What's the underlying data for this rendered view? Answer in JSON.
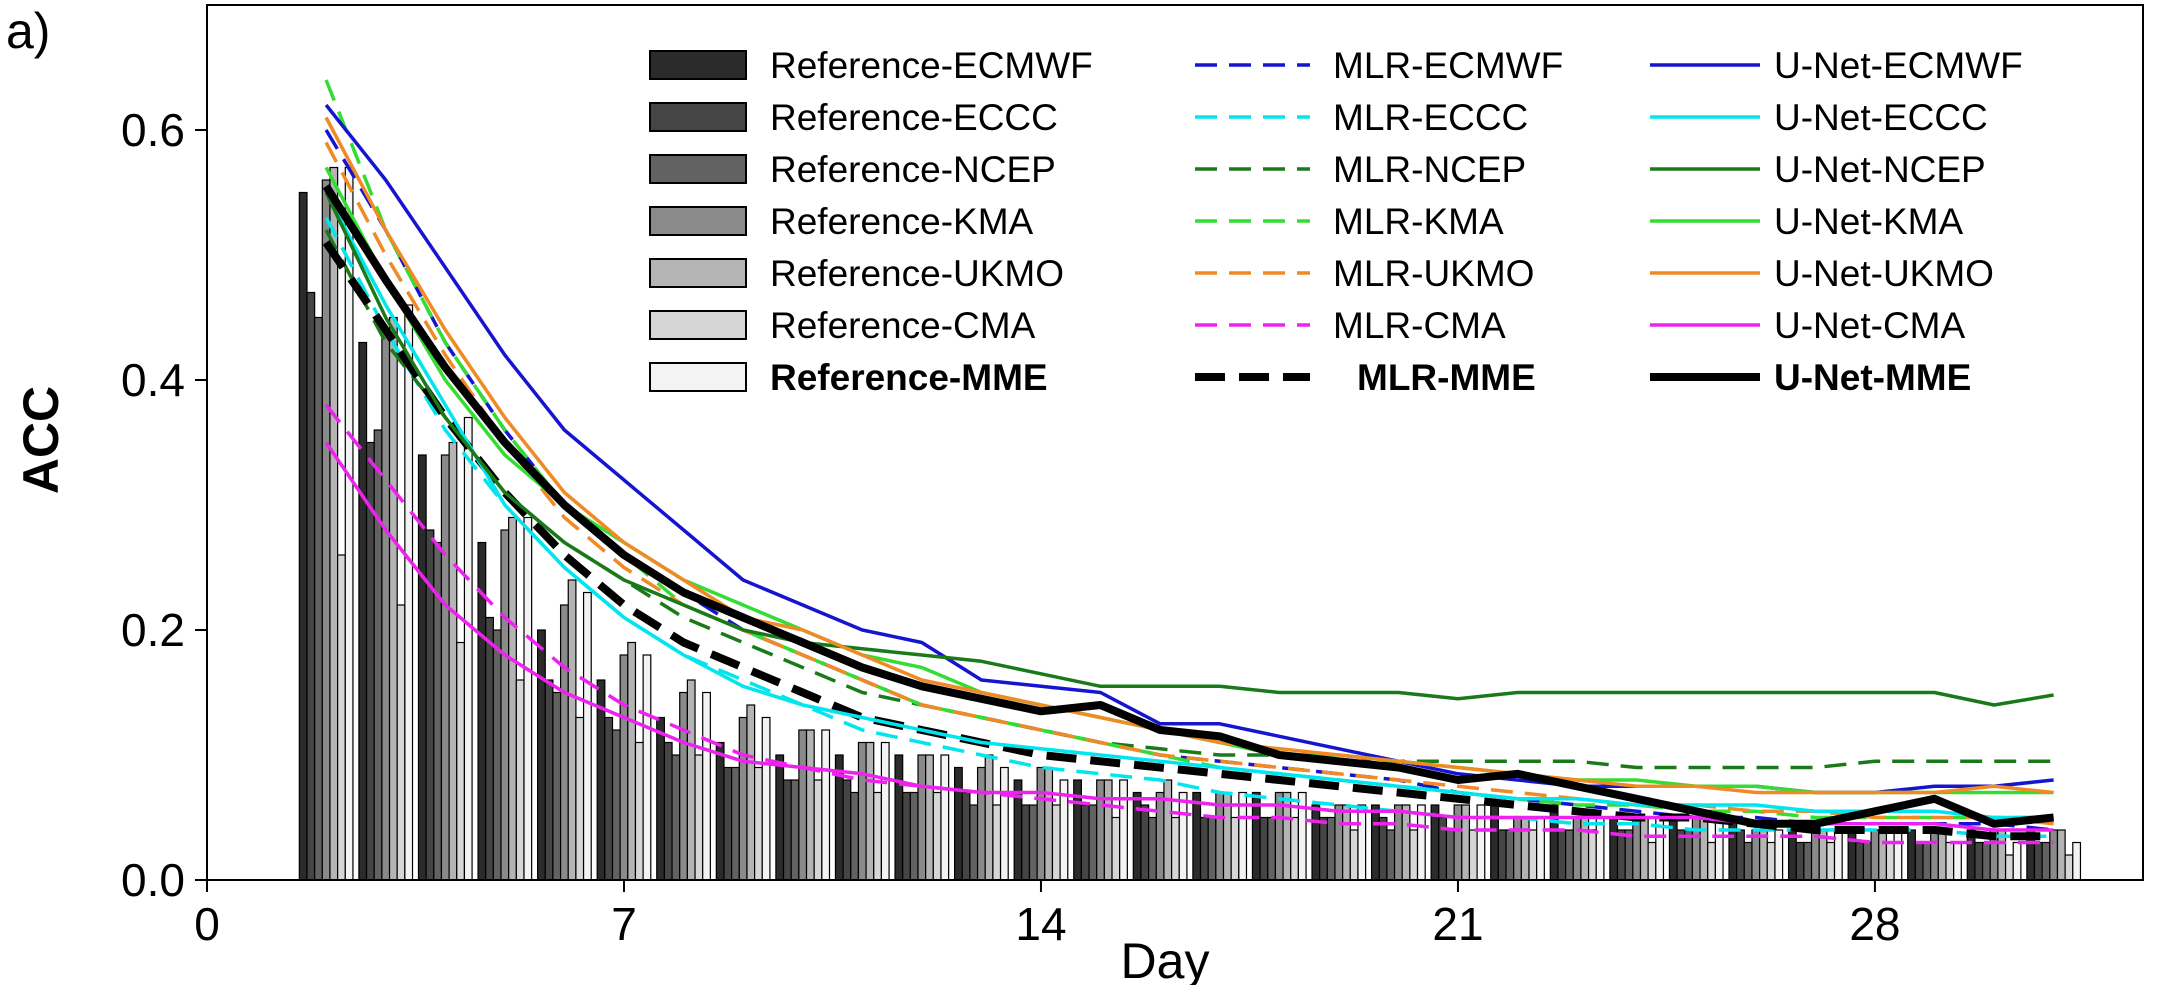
{
  "panel_label": "a)",
  "chart_data": {
    "type": "bar+line",
    "xlabel": "Day",
    "ylabel": "ACC",
    "xlim": [
      0,
      32.5
    ],
    "ylim": [
      0,
      0.7
    ],
    "x_ticks": [
      0,
      7,
      14,
      21,
      28
    ],
    "x_tick_labels": [
      "0",
      "7",
      "14",
      "21",
      "28"
    ],
    "y_ticks": [
      0.0,
      0.2,
      0.4,
      0.6
    ],
    "y_tick_labels": [
      "0.0",
      "0.2",
      "0.4",
      "0.6"
    ],
    "grid": false,
    "legend_position": "top-right, three columns",
    "days": [
      2,
      3,
      4,
      5,
      6,
      7,
      8,
      9,
      10,
      11,
      12,
      13,
      14,
      15,
      16,
      17,
      18,
      19,
      20,
      21,
      22,
      23,
      24,
      25,
      26,
      27,
      28,
      29,
      30,
      31
    ],
    "bars": [
      {
        "name": "Reference-ECMWF",
        "color": "#2b2b2b",
        "values": [
          0.55,
          0.43,
          0.34,
          0.27,
          0.2,
          0.16,
          0.13,
          0.11,
          0.1,
          0.1,
          0.1,
          0.09,
          0.08,
          0.08,
          0.07,
          0.07,
          0.07,
          0.06,
          0.06,
          0.06,
          0.06,
          0.06,
          0.05,
          0.05,
          0.05,
          0.04,
          0.04,
          0.04,
          0.04,
          0.04
        ]
      },
      {
        "name": "Reference-ECCC",
        "color": "#454545",
        "values": [
          0.47,
          0.35,
          0.28,
          0.21,
          0.16,
          0.13,
          0.11,
          0.09,
          0.08,
          0.08,
          0.07,
          0.07,
          0.06,
          0.06,
          0.06,
          0.05,
          0.05,
          0.05,
          0.05,
          0.05,
          0.04,
          0.04,
          0.04,
          0.04,
          0.04,
          0.03,
          0.03,
          0.03,
          0.03,
          0.03
        ]
      },
      {
        "name": "Reference-NCEP",
        "color": "#626262",
        "values": [
          0.45,
          0.36,
          0.27,
          0.2,
          0.15,
          0.12,
          0.1,
          0.09,
          0.08,
          0.07,
          0.07,
          0.06,
          0.06,
          0.06,
          0.05,
          0.05,
          0.05,
          0.05,
          0.04,
          0.04,
          0.04,
          0.04,
          0.04,
          0.04,
          0.03,
          0.03,
          0.03,
          0.03,
          0.03,
          0.03
        ]
      },
      {
        "name": "Reference-KMA",
        "color": "#8a8a8a",
        "values": [
          0.56,
          0.44,
          0.34,
          0.28,
          0.22,
          0.18,
          0.15,
          0.13,
          0.12,
          0.11,
          0.1,
          0.09,
          0.09,
          0.08,
          0.07,
          0.07,
          0.07,
          0.06,
          0.06,
          0.06,
          0.05,
          0.05,
          0.05,
          0.05,
          0.04,
          0.04,
          0.04,
          0.04,
          0.04,
          0.04
        ]
      },
      {
        "name": "Reference-UKMO",
        "color": "#b4b4b4",
        "values": [
          0.57,
          0.45,
          0.35,
          0.29,
          0.24,
          0.19,
          0.16,
          0.14,
          0.12,
          0.11,
          0.1,
          0.1,
          0.09,
          0.08,
          0.08,
          0.07,
          0.07,
          0.06,
          0.06,
          0.06,
          0.05,
          0.05,
          0.05,
          0.05,
          0.04,
          0.04,
          0.04,
          0.04,
          0.04,
          0.04
        ]
      },
      {
        "name": "Reference-CMA",
        "color": "#d6d6d6",
        "values": [
          0.26,
          0.22,
          0.19,
          0.16,
          0.13,
          0.11,
          0.1,
          0.09,
          0.08,
          0.07,
          0.07,
          0.06,
          0.06,
          0.05,
          0.05,
          0.05,
          0.05,
          0.04,
          0.04,
          0.04,
          0.04,
          0.04,
          0.03,
          0.03,
          0.03,
          0.03,
          0.03,
          0.03,
          0.02,
          0.02
        ]
      },
      {
        "name": "Reference-MME",
        "color": "#f3f3f3",
        "values": [
          0.57,
          0.46,
          0.37,
          0.29,
          0.23,
          0.18,
          0.15,
          0.13,
          0.12,
          0.11,
          0.1,
          0.09,
          0.08,
          0.08,
          0.07,
          0.07,
          0.07,
          0.06,
          0.06,
          0.06,
          0.05,
          0.05,
          0.05,
          0.05,
          0.04,
          0.04,
          0.04,
          0.03,
          0.03,
          0.03
        ]
      }
    ],
    "lines": [
      {
        "name": "MLR-ECMWF",
        "color": "#1515d0",
        "dash": "dashed",
        "width": 3.5,
        "values": [
          0.6,
          0.52,
          0.43,
          0.36,
          0.3,
          0.26,
          0.23,
          0.2,
          0.18,
          0.16,
          0.14,
          0.13,
          0.12,
          0.11,
          0.1,
          0.095,
          0.09,
          0.085,
          0.08,
          0.07,
          0.065,
          0.06,
          0.055,
          0.05,
          0.05,
          0.045,
          0.045,
          0.045,
          0.045,
          0.04
        ]
      },
      {
        "name": "MLR-ECCC",
        "color": "#00e5ee",
        "dash": "dashed",
        "width": 3.5,
        "values": [
          0.53,
          0.44,
          0.36,
          0.3,
          0.25,
          0.21,
          0.18,
          0.16,
          0.14,
          0.12,
          0.11,
          0.1,
          0.09,
          0.085,
          0.08,
          0.07,
          0.065,
          0.06,
          0.055,
          0.05,
          0.05,
          0.045,
          0.045,
          0.04,
          0.04,
          0.04,
          0.04,
          0.04,
          0.035,
          0.035
        ]
      },
      {
        "name": "MLR-NCEP",
        "color": "#1a7a1a",
        "dash": "dashed",
        "width": 3.5,
        "values": [
          0.52,
          0.43,
          0.37,
          0.31,
          0.27,
          0.24,
          0.21,
          0.19,
          0.17,
          0.15,
          0.14,
          0.13,
          0.12,
          0.11,
          0.105,
          0.1,
          0.1,
          0.095,
          0.095,
          0.095,
          0.095,
          0.095,
          0.09,
          0.09,
          0.09,
          0.09,
          0.095,
          0.095,
          0.095,
          0.095
        ]
      },
      {
        "name": "MLR-KMA",
        "color": "#33dd33",
        "dash": "dashed",
        "width": 3.5,
        "values": [
          0.64,
          0.52,
          0.43,
          0.36,
          0.3,
          0.26,
          0.22,
          0.2,
          0.18,
          0.16,
          0.14,
          0.13,
          0.12,
          0.11,
          0.1,
          0.09,
          0.085,
          0.08,
          0.075,
          0.07,
          0.065,
          0.06,
          0.06,
          0.055,
          0.055,
          0.05,
          0.05,
          0.05,
          0.05,
          0.05
        ]
      },
      {
        "name": "MLR-UKMO",
        "color": "#f08a24",
        "dash": "dashed",
        "width": 3.5,
        "values": [
          0.59,
          0.5,
          0.42,
          0.35,
          0.29,
          0.25,
          0.22,
          0.2,
          0.18,
          0.16,
          0.14,
          0.13,
          0.12,
          0.11,
          0.1,
          0.095,
          0.09,
          0.085,
          0.08,
          0.075,
          0.07,
          0.065,
          0.06,
          0.06,
          0.055,
          0.055,
          0.05,
          0.05,
          0.05,
          0.045
        ]
      },
      {
        "name": "MLR-CMA",
        "color": "#ee22ee",
        "dash": "dashed",
        "width": 3.5,
        "values": [
          0.38,
          0.32,
          0.26,
          0.21,
          0.17,
          0.14,
          0.12,
          0.1,
          0.09,
          0.08,
          0.075,
          0.07,
          0.065,
          0.06,
          0.055,
          0.05,
          0.05,
          0.045,
          0.045,
          0.04,
          0.04,
          0.04,
          0.035,
          0.035,
          0.035,
          0.035,
          0.03,
          0.03,
          0.03,
          0.03
        ]
      },
      {
        "name": "MLR-MME",
        "color": "#000000",
        "dash": "bold-dashed",
        "width": 8,
        "values": [
          0.51,
          0.44,
          0.37,
          0.31,
          0.26,
          0.22,
          0.19,
          0.17,
          0.15,
          0.13,
          0.12,
          0.11,
          0.1,
          0.095,
          0.09,
          0.085,
          0.08,
          0.075,
          0.07,
          0.065,
          0.06,
          0.055,
          0.05,
          0.05,
          0.045,
          0.04,
          0.04,
          0.04,
          0.035,
          0.035
        ]
      },
      {
        "name": "U-Net-ECMWF",
        "color": "#1515d0",
        "dash": "solid",
        "width": 3.5,
        "values": [
          0.62,
          0.56,
          0.49,
          0.42,
          0.36,
          0.32,
          0.28,
          0.24,
          0.22,
          0.2,
          0.19,
          0.16,
          0.155,
          0.15,
          0.125,
          0.125,
          0.115,
          0.105,
          0.095,
          0.085,
          0.08,
          0.075,
          0.075,
          0.075,
          0.075,
          0.07,
          0.07,
          0.075,
          0.075,
          0.08
        ]
      },
      {
        "name": "U-Net-ECCC",
        "color": "#00e5ee",
        "dash": "solid",
        "width": 3.5,
        "values": [
          0.55,
          0.46,
          0.38,
          0.3,
          0.25,
          0.21,
          0.18,
          0.155,
          0.14,
          0.13,
          0.12,
          0.11,
          0.105,
          0.1,
          0.095,
          0.09,
          0.085,
          0.08,
          0.075,
          0.07,
          0.065,
          0.065,
          0.06,
          0.06,
          0.06,
          0.055,
          0.055,
          0.055,
          0.05,
          0.05
        ]
      },
      {
        "name": "U-Net-NCEP",
        "color": "#1a7a1a",
        "dash": "solid",
        "width": 3.5,
        "values": [
          0.55,
          0.45,
          0.37,
          0.31,
          0.27,
          0.24,
          0.22,
          0.2,
          0.19,
          0.185,
          0.18,
          0.175,
          0.165,
          0.155,
          0.155,
          0.155,
          0.15,
          0.15,
          0.15,
          0.145,
          0.15,
          0.15,
          0.15,
          0.15,
          0.15,
          0.15,
          0.15,
          0.15,
          0.14,
          0.148
        ]
      },
      {
        "name": "U-Net-KMA",
        "color": "#33dd33",
        "dash": "solid",
        "width": 3.5,
        "values": [
          0.57,
          0.48,
          0.4,
          0.34,
          0.3,
          0.27,
          0.24,
          0.22,
          0.2,
          0.18,
          0.17,
          0.15,
          0.14,
          0.13,
          0.12,
          0.11,
          0.1,
          0.1,
          0.095,
          0.09,
          0.085,
          0.08,
          0.08,
          0.075,
          0.075,
          0.07,
          0.07,
          0.07,
          0.07,
          0.07
        ]
      },
      {
        "name": "U-Net-UKMO",
        "color": "#f08a24",
        "dash": "solid",
        "width": 3.5,
        "values": [
          0.61,
          0.52,
          0.44,
          0.37,
          0.31,
          0.27,
          0.24,
          0.21,
          0.2,
          0.18,
          0.16,
          0.15,
          0.14,
          0.13,
          0.12,
          0.11,
          0.105,
          0.1,
          0.095,
          0.09,
          0.085,
          0.08,
          0.075,
          0.075,
          0.07,
          0.07,
          0.07,
          0.07,
          0.075,
          0.07
        ]
      },
      {
        "name": "U-Net-CMA",
        "color": "#ee22ee",
        "dash": "solid",
        "width": 3.5,
        "values": [
          0.35,
          0.28,
          0.22,
          0.18,
          0.15,
          0.13,
          0.11,
          0.095,
          0.09,
          0.085,
          0.075,
          0.07,
          0.07,
          0.065,
          0.065,
          0.06,
          0.06,
          0.055,
          0.055,
          0.05,
          0.05,
          0.05,
          0.05,
          0.05,
          0.045,
          0.045,
          0.045,
          0.045,
          0.04,
          0.04
        ]
      },
      {
        "name": "U-Net-MME",
        "color": "#000000",
        "dash": "solid",
        "width": 8,
        "values": [
          0.555,
          0.48,
          0.41,
          0.35,
          0.3,
          0.26,
          0.23,
          0.21,
          0.19,
          0.17,
          0.155,
          0.145,
          0.135,
          0.14,
          0.12,
          0.115,
          0.1,
          0.095,
          0.09,
          0.08,
          0.085,
          0.075,
          0.065,
          0.055,
          0.045,
          0.045,
          0.055,
          0.065,
          0.045,
          0.05
        ]
      }
    ],
    "legend_bold": [
      "Reference-MME",
      "MLR-MME",
      "U-Net-MME"
    ]
  }
}
